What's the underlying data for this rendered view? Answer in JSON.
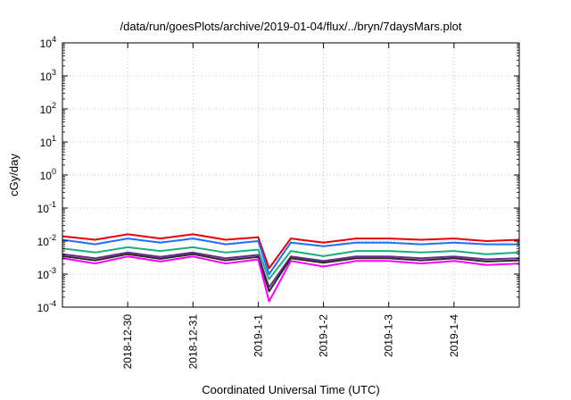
{
  "chart_data": {
    "type": "line",
    "title": "/data/run/goesPlots/archive/2019-01-04/flux/../bryn/7daysMars.plot",
    "xlabel": "Coordinated Universal Time (UTC)",
    "ylabel": "cGy/day",
    "yscale": "log",
    "ylim": [
      0.0001,
      10000
    ],
    "xlim": [
      "2018-12-29T00:00",
      "2019-01-05T00:00"
    ],
    "y_ticks": [
      {
        "base": "10",
        "exp": "-4"
      },
      {
        "base": "10",
        "exp": "-3"
      },
      {
        "base": "10",
        "exp": "-2"
      },
      {
        "base": "10",
        "exp": "-1"
      },
      {
        "base": "10",
        "exp": "0"
      },
      {
        "base": "10",
        "exp": "1"
      },
      {
        "base": "10",
        "exp": "2"
      },
      {
        "base": "10",
        "exp": "3"
      },
      {
        "base": "10",
        "exp": "4"
      }
    ],
    "x_ticks": [
      {
        "label": "2018-12-30",
        "x": "2018-12-30T00:00"
      },
      {
        "label": "2018-12-31",
        "x": "2018-12-31T00:00"
      },
      {
        "label": "2019-1-1",
        "x": "2019-01-01T00:00"
      },
      {
        "label": "2019-1-2",
        "x": "2019-01-02T00:00"
      },
      {
        "label": "2019-1-3",
        "x": "2019-01-03T00:00"
      },
      {
        "label": "2019-1-4",
        "x": "2019-01-04T00:00"
      }
    ],
    "grid": true,
    "legend": "none",
    "x": [
      "2018-12-29T00:00",
      "2018-12-29T12:00",
      "2018-12-30T00:00",
      "2018-12-30T12:00",
      "2018-12-31T00:00",
      "2018-12-31T12:00",
      "2019-01-01T00:00",
      "2019-01-01T04:00",
      "2019-01-01T12:00",
      "2019-01-02T00:00",
      "2019-01-02T12:00",
      "2019-01-03T00:00",
      "2019-01-03T12:00",
      "2019-01-04T00:00",
      "2019-01-04T12:00",
      "2019-01-05T00:00"
    ],
    "series": [
      {
        "color": "#e8000b",
        "values": [
          0.014,
          0.011,
          0.016,
          0.012,
          0.016,
          0.011,
          0.013,
          0.0015,
          0.012,
          0.009,
          0.012,
          0.012,
          0.011,
          0.012,
          0.01,
          0.011
        ]
      },
      {
        "color": "#1f6fff",
        "values": [
          0.011,
          0.008,
          0.012,
          0.009,
          0.012,
          0.008,
          0.01,
          0.001,
          0.009,
          0.007,
          0.009,
          0.009,
          0.008,
          0.009,
          0.008,
          0.008
        ]
      },
      {
        "color": "#18b07a",
        "values": [
          0.006,
          0.0045,
          0.0065,
          0.005,
          0.0065,
          0.0045,
          0.0055,
          0.0007,
          0.005,
          0.0035,
          0.005,
          0.005,
          0.0045,
          0.005,
          0.004,
          0.0045
        ]
      },
      {
        "color": "#6a2a8a",
        "values": [
          0.004,
          0.003,
          0.0045,
          0.0033,
          0.0045,
          0.003,
          0.0038,
          0.0004,
          0.0034,
          0.0025,
          0.0034,
          0.0034,
          0.003,
          0.0034,
          0.0028,
          0.003
        ]
      },
      {
        "color": "#2a2a2a",
        "values": [
          0.0035,
          0.0026,
          0.004,
          0.0029,
          0.004,
          0.0026,
          0.0033,
          0.0003,
          0.003,
          0.0022,
          0.003,
          0.003,
          0.0026,
          0.003,
          0.0024,
          0.0026
        ]
      },
      {
        "color": "#ff00ff",
        "values": [
          0.003,
          0.0021,
          0.0034,
          0.0024,
          0.0034,
          0.0021,
          0.0028,
          0.00015,
          0.0025,
          0.0017,
          0.0025,
          0.0025,
          0.0021,
          0.0025,
          0.0019,
          0.0021
        ]
      }
    ]
  }
}
